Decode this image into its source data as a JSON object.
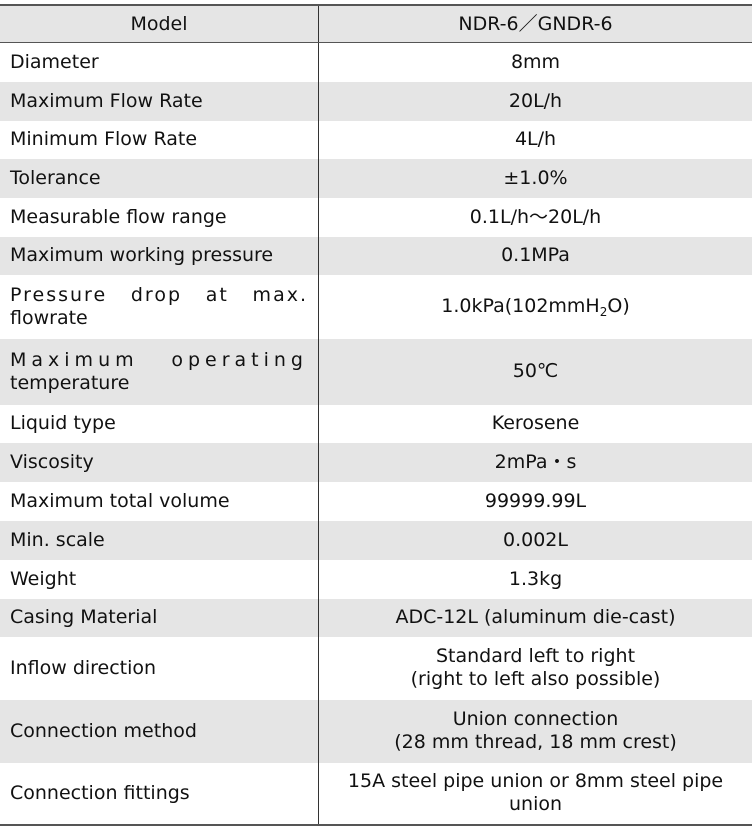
{
  "header": {
    "label": "Model",
    "value": "NDR-6／GNDR-6"
  },
  "rows": [
    {
      "label": "Diameter",
      "value": "8mm"
    },
    {
      "label": "Maximum Flow Rate",
      "value": "20L/h"
    },
    {
      "label": "Minimum Flow Rate",
      "value": "4L/h"
    },
    {
      "label": "Tolerance",
      "value": "±1.0%"
    },
    {
      "label": "Measurable flow range",
      "value": "0.1L/h～20L/h"
    },
    {
      "label": "Maximum working pressure",
      "value": "0.1MPa"
    },
    {
      "label_line1": "Pressure drop at max.",
      "label_line2": "flowrate",
      "value_prefix": "1.0kPa(102mmH",
      "value_sub": "2",
      "value_suffix": "O)"
    },
    {
      "label_line1": "Maximum operating",
      "label_line2": "temperature",
      "value": "50℃"
    },
    {
      "label": "Liquid type",
      "value": "Kerosene"
    },
    {
      "label": "Viscosity",
      "value": "2mPa・s"
    },
    {
      "label": "Maximum total volume",
      "value": "99999.99L"
    },
    {
      "label": "Min. scale",
      "value": "0.002L"
    },
    {
      "label": "Weight",
      "value": "1.3kg"
    },
    {
      "label": "Casing Material",
      "value": "ADC-12L (aluminum die-cast)"
    },
    {
      "label": "Inflow direction",
      "value_line1": "Standard left to right",
      "value_line2": "(right to left also possible)"
    },
    {
      "label": "Connection method",
      "value_line1": "Union connection",
      "value_line2": "(28 mm thread, 18 mm crest)"
    },
    {
      "label": "Connection fittings",
      "value_line1": "15A steel pipe union or 8mm steel pipe",
      "value_line2": "union"
    }
  ]
}
